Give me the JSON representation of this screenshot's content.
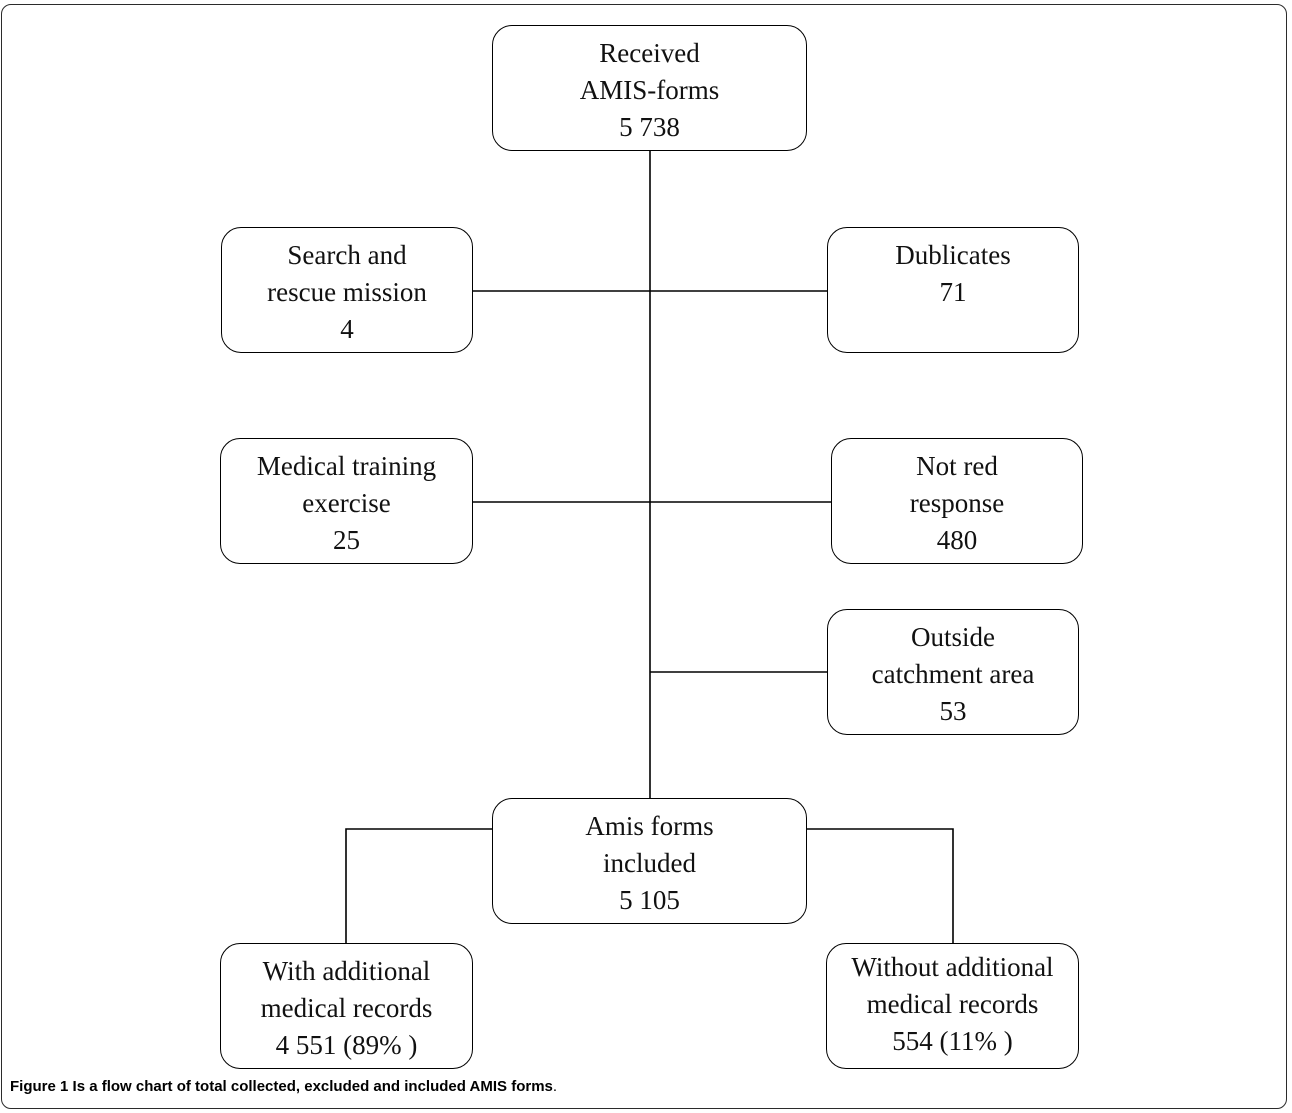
{
  "nodes": {
    "received": {
      "line1": "Received",
      "line2": "AMIS-forms",
      "line3": "5 738"
    },
    "search_rescue": {
      "line1": "Search and",
      "line2": "rescue mission",
      "line3": "4"
    },
    "duplicates": {
      "line1": "Dublicates",
      "line2": "71"
    },
    "training": {
      "line1": "Medical training",
      "line2": "exercise",
      "line3": "25"
    },
    "not_red": {
      "line1": "Not red",
      "line2": "response",
      "line3": "480"
    },
    "outside": {
      "line1": "Outside",
      "line2": "catchment area",
      "line3": "53"
    },
    "included": {
      "line1": "Amis forms",
      "line2": "included",
      "line3": "5 105"
    },
    "with_records": {
      "line1": "With additional",
      "line2": "medical records",
      "line3": "4 551 (89% )"
    },
    "without_records": {
      "line1": "Without additional",
      "line2": "medical records",
      "line3": "554 (11% )"
    }
  },
  "caption": {
    "label": "Figure 1",
    "bold_text": " Is a flow chart of total collected, excluded and included AMIS forms",
    "suffix": "."
  }
}
